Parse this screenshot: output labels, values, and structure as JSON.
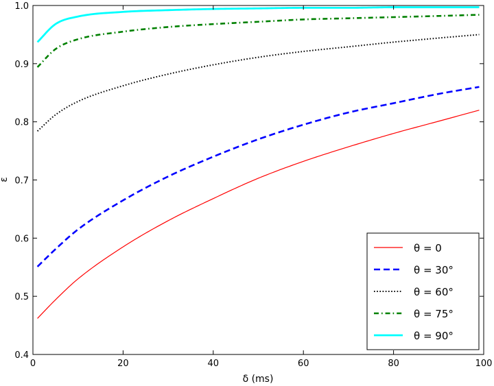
{
  "chart_data": {
    "type": "line",
    "title": "",
    "xlabel": "δ (ms)",
    "ylabel": "ε",
    "xlim": [
      0,
      100
    ],
    "ylim": [
      0.4,
      1.0
    ],
    "xticks": [
      0,
      20,
      40,
      60,
      80,
      100
    ],
    "yticks": [
      0.4,
      0.5,
      0.6,
      0.7,
      0.8,
      0.9,
      1.0
    ],
    "xtick_labels": [
      "0",
      "20",
      "40",
      "60",
      "80",
      "100"
    ],
    "ytick_labels": [
      "0.4",
      "0.5",
      "0.6",
      "0.7",
      "0.8",
      "0.9",
      "1.0"
    ],
    "grid": false,
    "legend_position": "lower-right",
    "x": [
      1,
      5,
      10,
      20,
      30,
      40,
      50,
      60,
      70,
      80,
      90,
      99
    ],
    "series": [
      {
        "name": "θ = 0",
        "color": "#ff0000",
        "style": "solid",
        "values": [
          0.462,
          0.494,
          0.53,
          0.585,
          0.63,
          0.668,
          0.703,
          0.732,
          0.757,
          0.78,
          0.801,
          0.82
        ]
      },
      {
        "name": "θ = 30°",
        "color": "#0000ff",
        "style": "dashed",
        "values": [
          0.551,
          0.581,
          0.615,
          0.665,
          0.706,
          0.74,
          0.77,
          0.795,
          0.816,
          0.832,
          0.848,
          0.86
        ]
      },
      {
        "name": "θ = 60°",
        "color": "#000000",
        "style": "dotted",
        "values": [
          0.784,
          0.812,
          0.835,
          0.862,
          0.882,
          0.898,
          0.911,
          0.921,
          0.929,
          0.937,
          0.944,
          0.95
        ]
      },
      {
        "name": "θ = 75°",
        "color": "#008000",
        "style": "dashdot",
        "values": [
          0.894,
          0.925,
          0.942,
          0.955,
          0.963,
          0.968,
          0.972,
          0.976,
          0.978,
          0.98,
          0.982,
          0.984
        ]
      },
      {
        "name": "θ = 90°",
        "color": "#00ffff",
        "style": "solid-thick",
        "values": [
          0.937,
          0.968,
          0.981,
          0.989,
          0.992,
          0.994,
          0.995,
          0.996,
          0.996,
          0.997,
          0.997,
          0.997
        ]
      }
    ]
  }
}
